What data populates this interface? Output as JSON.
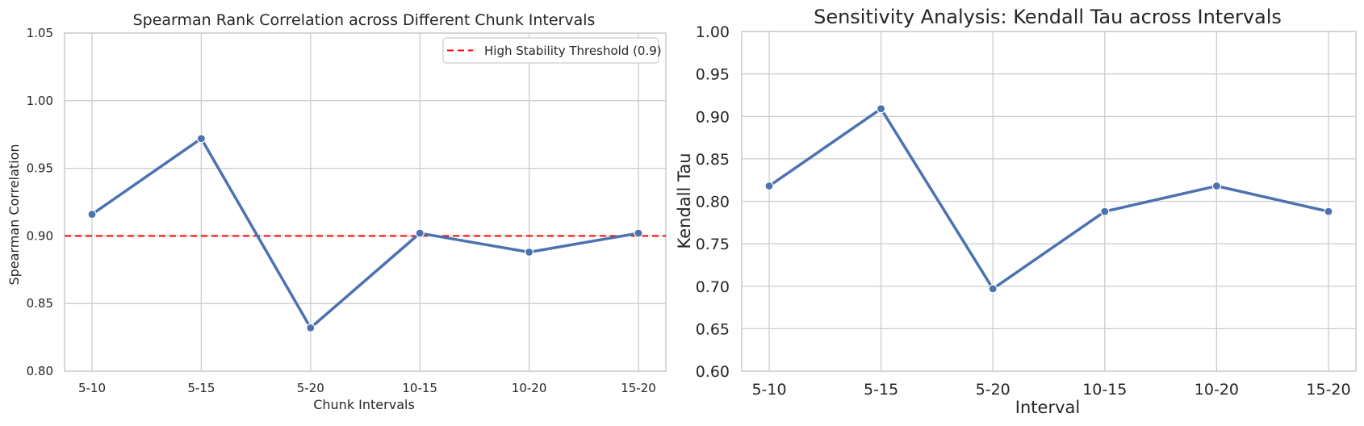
{
  "chart_data": [
    {
      "type": "line",
      "title": "Spearman Rank Correlation across Different Chunk Intervals",
      "xlabel": "Chunk Intervals",
      "ylabel": "Spearman Correlation",
      "categories": [
        "5-10",
        "5-15",
        "5-20",
        "10-15",
        "10-20",
        "15-20"
      ],
      "series": [
        {
          "values": [
            0.916,
            0.972,
            0.832,
            0.902,
            0.888,
            0.902
          ],
          "color": "#4c72b0"
        }
      ],
      "reference_line": {
        "label": "High Stability Threshold (0.9)",
        "y": 0.9,
        "color": "#ff0000",
        "style": "dashed"
      },
      "ylim": [
        0.8,
        1.05
      ],
      "yticks": [
        "0.80",
        "0.85",
        "0.90",
        "0.95",
        "1.00",
        "1.05"
      ],
      "grid": true,
      "legend_position": "top-right"
    },
    {
      "type": "line",
      "title": "Sensitivity Analysis: Kendall Tau across Intervals",
      "xlabel": "Interval",
      "ylabel": "Kendall Tau",
      "categories": [
        "5-10",
        "5-15",
        "5-20",
        "10-15",
        "10-20",
        "15-20"
      ],
      "series": [
        {
          "values": [
            0.818,
            0.909,
            0.697,
            0.788,
            0.818,
            0.788
          ],
          "color": "#4c72b0"
        }
      ],
      "ylim": [
        0.6,
        1.0
      ],
      "yticks": [
        "0.60",
        "0.65",
        "0.70",
        "0.75",
        "0.80",
        "0.85",
        "0.90",
        "0.95",
        "1.00"
      ],
      "grid": true
    }
  ]
}
